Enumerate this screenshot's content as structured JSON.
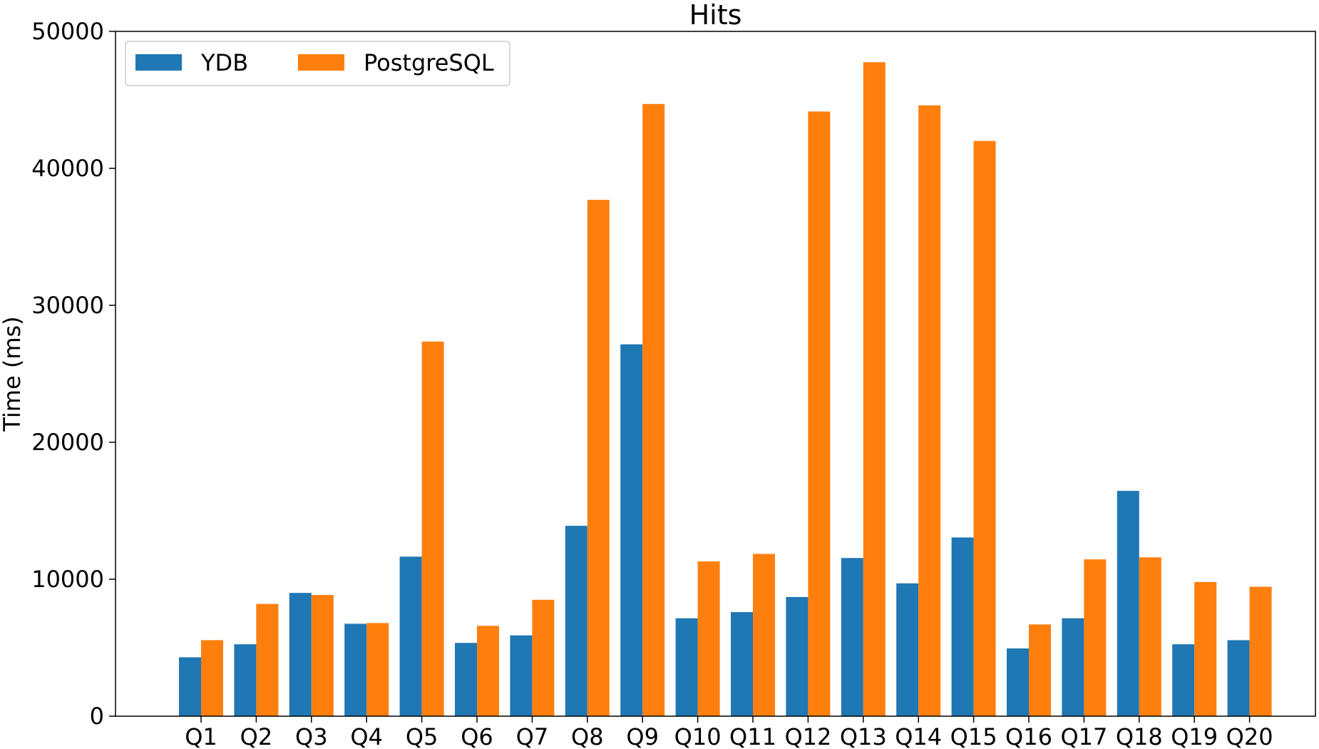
{
  "chart_data": {
    "type": "bar",
    "title": "Hits",
    "xlabel": "",
    "ylabel": "Time (ms)",
    "categories": [
      "Q1",
      "Q2",
      "Q3",
      "Q4",
      "Q5",
      "Q6",
      "Q7",
      "Q8",
      "Q9",
      "Q10",
      "Q11",
      "Q12",
      "Q13",
      "Q14",
      "Q15",
      "Q16",
      "Q17",
      "Q18",
      "Q19",
      "Q20"
    ],
    "series": [
      {
        "name": "YDB",
        "color": "#1f77b4",
        "values": [
          4300,
          5250,
          9000,
          6750,
          11650,
          5350,
          5900,
          13900,
          27150,
          7150,
          7600,
          8700,
          11550,
          9700,
          13050,
          4950,
          7150,
          16450,
          5250,
          5550
        ]
      },
      {
        "name": "PostgreSQL",
        "color": "#ff7f0e",
        "values": [
          5550,
          8200,
          8850,
          6800,
          27350,
          6600,
          8500,
          37700,
          44700,
          11300,
          11850,
          44150,
          47750,
          44600,
          42000,
          6700,
          11450,
          11600,
          9800,
          9450
        ]
      }
    ],
    "ylim": [
      0,
      50000
    ],
    "yticks": [
      0,
      10000,
      20000,
      30000,
      40000,
      50000
    ],
    "ytick_labels": [
      "0",
      "10000",
      "20000",
      "30000",
      "40000",
      "50000"
    ],
    "grid": false,
    "legend_position": "top-left",
    "legend_columns": 2
  }
}
